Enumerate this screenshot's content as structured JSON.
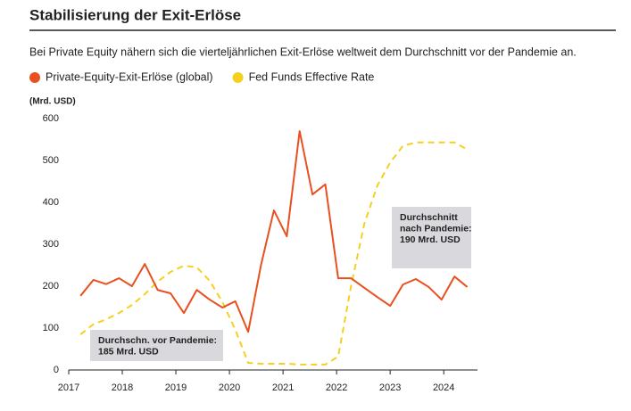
{
  "chart_data": {
    "type": "line",
    "title": "Stabilisierung der Exit-Erlöse",
    "subtitle": "Bei Private Equity nähern sich die vierteljährlichen Exit-Erlöse weltweit dem Durchschnitt vor der Pandemie an.",
    "y_label": "(Mrd. USD)",
    "x": [
      2017.22,
      2017.46,
      2017.7,
      2017.94,
      2018.18,
      2018.42,
      2018.66,
      2018.9,
      2019.15,
      2019.39,
      2019.63,
      2019.87,
      2020.11,
      2020.35,
      2020.59,
      2020.83,
      2021.07,
      2021.31,
      2021.55,
      2021.79,
      2022.03,
      2022.27,
      2022.52,
      2022.76,
      2023.0,
      2023.24,
      2023.48,
      2023.72,
      2023.96,
      2024.2,
      2024.44
    ],
    "series": [
      {
        "name": "Private-Equity-Exit-Erlöse (global)",
        "color": "#e8501f",
        "dashed": false,
        "values": [
          177,
          215,
          205,
          219,
          200,
          253,
          191,
          183,
          136,
          191,
          168,
          149,
          164,
          91,
          251,
          381,
          319,
          570,
          419,
          443,
          219,
          219,
          196,
          174,
          153,
          204,
          217,
          198,
          168,
          223,
          198
        ]
      },
      {
        "name": "Fed Funds Effective Rate",
        "color": "#f5d020",
        "dashed": true,
        "values": [
          85,
          109,
          121,
          136,
          155,
          181,
          211,
          234,
          249,
          245,
          213,
          162,
          96,
          17,
          15,
          15,
          15,
          13,
          13,
          13,
          32,
          200,
          350,
          440,
          495,
          535,
          543,
          543,
          543,
          543,
          526
        ]
      }
    ],
    "xlim": [
      2017,
      2024.63
    ],
    "xticks": [
      2017,
      2018,
      2019,
      2020,
      2021,
      2022,
      2023,
      2024
    ],
    "ylim": [
      0,
      600
    ],
    "yticks": [
      0,
      100,
      200,
      300,
      400,
      500,
      600
    ],
    "grid": false,
    "annotations": [
      {
        "lines": [
          "Durchschn. vor Pandemie:",
          "185 Mrd. USD"
        ]
      },
      {
        "lines": [
          "Durchschnitt",
          "nach Pandemie:",
          "190 Mrd. USD"
        ]
      }
    ]
  }
}
